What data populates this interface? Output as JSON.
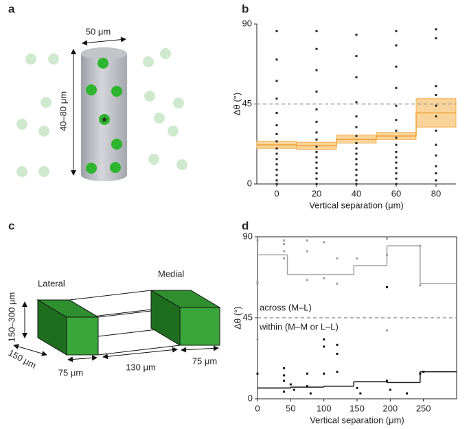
{
  "panels": [
    "a",
    "b",
    "c",
    "d"
  ],
  "diagram_a": {
    "width_label": "50 μm",
    "height_label": "40–80 μm"
  },
  "diagram_c": {
    "lateral": "Lateral",
    "medial": "Medial",
    "height_label": "150–300 μm",
    "depth_label": "150 μm",
    "left_width_label": "75 μm",
    "gap_label": "130 μm",
    "right_width_label": "75 μm"
  },
  "chart_data": [
    {
      "type": "scatter",
      "xlabel": "Vertical separation (μm)",
      "ylabel": "Δθ (°)",
      "xlim": [
        -10,
        90
      ],
      "xticks": [
        0,
        20,
        40,
        60,
        80
      ],
      "ylim": [
        0,
        90
      ],
      "yticks": [
        0,
        45,
        90
      ],
      "reference_line": 45,
      "box": false,
      "series": [
        {
          "color": "#222222",
          "x": [
            0,
            0,
            0,
            0,
            0,
            0,
            0,
            0,
            0,
            0,
            0,
            0,
            0,
            0,
            0,
            0,
            20,
            20,
            20,
            20,
            20,
            20,
            20,
            20,
            20,
            20,
            20,
            20,
            20,
            20,
            20,
            20,
            40,
            40,
            40,
            40,
            40,
            40,
            40,
            40,
            40,
            40,
            40,
            40,
            40,
            40,
            40,
            40,
            60,
            60,
            60,
            60,
            60,
            60,
            60,
            60,
            60,
            60,
            60,
            60,
            60,
            60,
            60,
            60,
            80,
            80,
            80,
            80,
            80,
            80,
            80,
            80,
            80,
            80,
            80,
            80
          ],
          "y": [
            0,
            2,
            5,
            8,
            11,
            14,
            17,
            20,
            24,
            28,
            33,
            40,
            48,
            58,
            70,
            86,
            0,
            3,
            6,
            9,
            12,
            15,
            18,
            21,
            25,
            29,
            35,
            42,
            52,
            64,
            76,
            86,
            0,
            2,
            5,
            8,
            11,
            14,
            17,
            20,
            23,
            27,
            32,
            38,
            46,
            60,
            72,
            84,
            0,
            3,
            6,
            9,
            12,
            15,
            18,
            22,
            26,
            30,
            36,
            44,
            54,
            66,
            78,
            86,
            2,
            6,
            10,
            16,
            22,
            30,
            38,
            44,
            50,
            55,
            82,
            87
          ],
          "step_color": "#f0a030",
          "band_color": "#f9d49a",
          "step_edges": [
            -10,
            10,
            30,
            50,
            70,
            90
          ],
          "step_values": [
            22,
            21.5,
            25,
            27,
            40
          ],
          "step_lower": [
            20,
            19.5,
            23,
            25,
            32
          ],
          "step_upper": [
            24,
            23.5,
            27.5,
            29,
            48
          ]
        }
      ]
    },
    {
      "type": "scatter",
      "xlabel": "Vertical separation (μm)",
      "ylabel": "Δθ (°)",
      "xlim": [
        0,
        300
      ],
      "xticks": [
        0,
        50,
        100,
        150,
        200,
        250
      ],
      "ylim": [
        0,
        90
      ],
      "yticks": [
        0,
        45,
        90
      ],
      "reference_line": 45,
      "box": true,
      "series": [
        {
          "name": "across (M–L)",
          "color": "#a0a0a0",
          "x": [
            0,
            0,
            0,
            0,
            40,
            40,
            40,
            40,
            75,
            75,
            75,
            100,
            100,
            120,
            120,
            150,
            195,
            195,
            195,
            245,
            245
          ],
          "y": [
            88,
            65,
            64,
            33,
            88,
            86,
            82,
            78,
            88,
            82,
            66,
            87,
            67,
            78,
            64,
            78,
            89,
            80,
            38,
            85,
            63
          ],
          "step_color": "#a0a0a0",
          "step_edges": [
            0,
            45,
            145,
            195,
            245,
            300
          ],
          "step_values": [
            80,
            69,
            74,
            85,
            64
          ]
        },
        {
          "name": "within (M–M or L–L)",
          "color": "#111111",
          "x": [
            0,
            40,
            40,
            40,
            40,
            50,
            55,
            75,
            75,
            80,
            100,
            100,
            100,
            120,
            120,
            120,
            150,
            155,
            195,
            195,
            200,
            225,
            245,
            250
          ],
          "y": [
            14,
            17,
            13,
            10,
            4,
            8,
            5,
            14,
            7,
            3,
            33,
            29,
            14,
            30,
            25,
            15,
            6,
            3,
            62,
            10,
            5,
            3,
            14,
            15
          ],
          "step_color": "#111111",
          "step_edges": [
            0,
            50,
            100,
            145,
            195,
            245,
            300
          ],
          "step_values": [
            6,
            6.5,
            7,
            9.5,
            9,
            15
          ]
        }
      ]
    }
  ]
}
